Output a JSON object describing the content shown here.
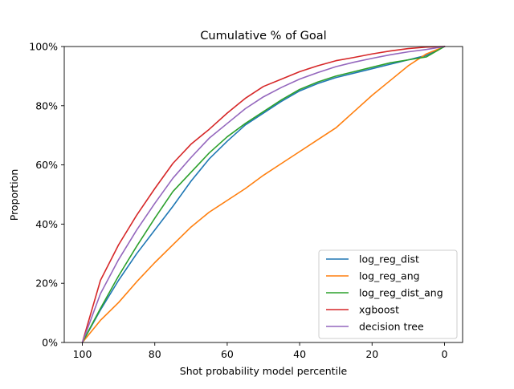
{
  "chart_data": {
    "type": "line",
    "title": "Cumulative % of Goal",
    "xlabel": "Shot probability model percentile",
    "ylabel": "Proportion",
    "xlim": [
      105,
      -5
    ],
    "x_reversed": true,
    "ylim": [
      0,
      1
    ],
    "grid": false,
    "legend_position": "lower-right",
    "x_ticks": [
      {
        "value": 100,
        "label": "100"
      },
      {
        "value": 80,
        "label": "80"
      },
      {
        "value": 60,
        "label": "60"
      },
      {
        "value": 40,
        "label": "40"
      },
      {
        "value": 20,
        "label": "20"
      },
      {
        "value": 0,
        "label": "0"
      }
    ],
    "y_ticks": [
      {
        "value": 0,
        "label": "0%"
      },
      {
        "value": 0.2,
        "label": "20%"
      },
      {
        "value": 0.4,
        "label": "40%"
      },
      {
        "value": 0.6,
        "label": "60%"
      },
      {
        "value": 0.8,
        "label": "80%"
      },
      {
        "value": 1.0,
        "label": "100%"
      }
    ],
    "x": [
      100,
      95,
      90,
      85,
      80,
      75,
      70,
      65,
      60,
      55,
      50,
      45,
      40,
      35,
      30,
      25,
      20,
      15,
      10,
      5,
      0
    ],
    "series": [
      {
        "name": "log_reg_dist",
        "color": "#1f77b4",
        "values": [
          0.0,
          0.11,
          0.21,
          0.3,
          0.38,
          0.46,
          0.545,
          0.62,
          0.68,
          0.735,
          0.775,
          0.815,
          0.85,
          0.875,
          0.895,
          0.91,
          0.925,
          0.94,
          0.955,
          0.97,
          1.0
        ]
      },
      {
        "name": "log_reg_ang",
        "color": "#ff7f0e",
        "values": [
          0.0,
          0.075,
          0.135,
          0.205,
          0.27,
          0.33,
          0.39,
          0.44,
          0.48,
          0.52,
          0.565,
          0.605,
          0.645,
          0.685,
          0.725,
          0.78,
          0.835,
          0.885,
          0.935,
          0.975,
          1.0
        ]
      },
      {
        "name": "log_reg_dist_ang",
        "color": "#2ca02c",
        "values": [
          0.0,
          0.115,
          0.225,
          0.325,
          0.42,
          0.51,
          0.575,
          0.64,
          0.695,
          0.74,
          0.78,
          0.82,
          0.855,
          0.88,
          0.9,
          0.915,
          0.93,
          0.945,
          0.955,
          0.965,
          1.0
        ]
      },
      {
        "name": "xgboost",
        "color": "#d62728",
        "values": [
          0.0,
          0.21,
          0.33,
          0.43,
          0.52,
          0.605,
          0.67,
          0.72,
          0.775,
          0.825,
          0.865,
          0.89,
          0.915,
          0.935,
          0.952,
          0.963,
          0.975,
          0.985,
          0.993,
          0.998,
          1.0
        ]
      },
      {
        "name": "decision tree",
        "color": "#9467bd",
        "values": [
          0.0,
          0.165,
          0.28,
          0.38,
          0.47,
          0.555,
          0.625,
          0.69,
          0.74,
          0.79,
          0.83,
          0.862,
          0.89,
          0.912,
          0.932,
          0.947,
          0.96,
          0.972,
          0.982,
          0.99,
          1.0
        ]
      }
    ]
  }
}
